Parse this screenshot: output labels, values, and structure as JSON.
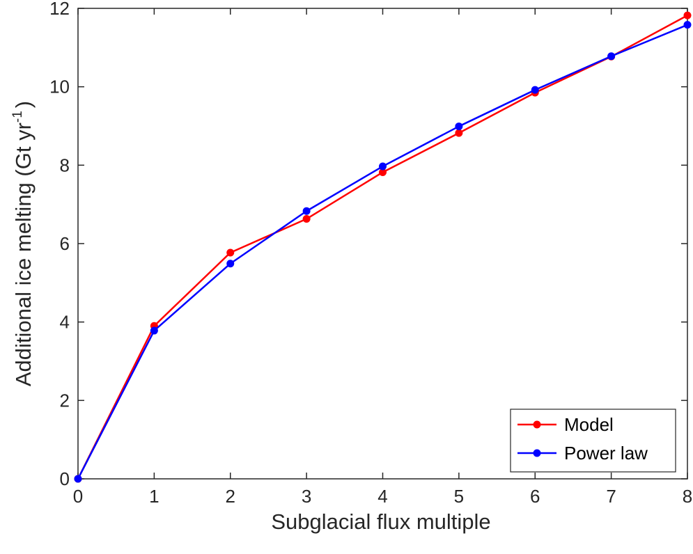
{
  "chart_data": {
    "type": "line",
    "xlabel": "Subglacial flux multiple",
    "ylabel_main": "Additional ice melting (Gt yr",
    "ylabel_sup": "-1",
    "ylabel_end": ")",
    "xlim": [
      0,
      8
    ],
    "ylim": [
      0,
      12
    ],
    "x_ticks": [
      0,
      1,
      2,
      3,
      4,
      5,
      6,
      7,
      8
    ],
    "y_ticks": [
      0,
      2,
      4,
      6,
      8,
      10,
      12
    ],
    "grid": false,
    "legend_position": "bottom-right",
    "x": [
      0,
      1,
      2,
      3,
      4,
      5,
      6,
      7,
      8
    ],
    "series": [
      {
        "name": "Model",
        "color": "#ff0000",
        "values": [
          0,
          3.9,
          5.77,
          6.63,
          7.82,
          8.82,
          9.85,
          10.77,
          11.82
        ]
      },
      {
        "name": "Power law",
        "color": "#0000ff",
        "values": [
          0,
          3.78,
          5.49,
          6.83,
          7.97,
          8.99,
          9.92,
          10.78,
          11.58
        ]
      }
    ]
  }
}
